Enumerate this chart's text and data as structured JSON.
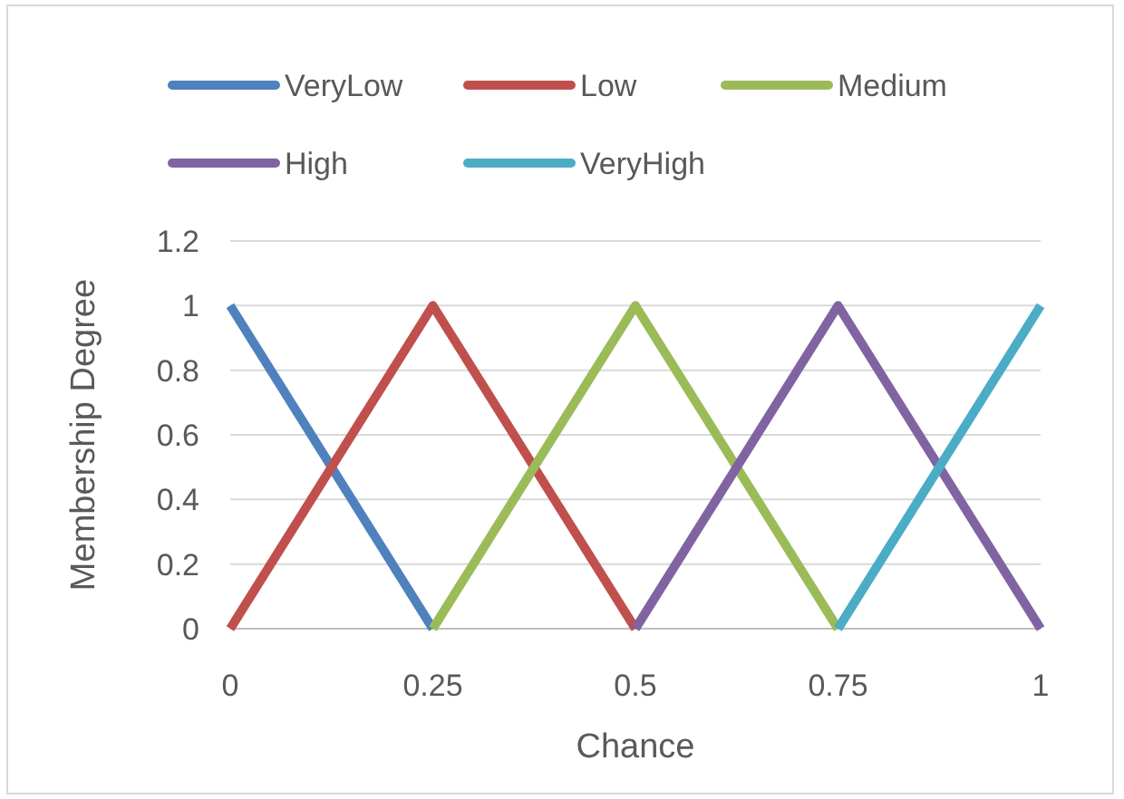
{
  "chart_data": {
    "type": "line",
    "xlabel": "Chance",
    "ylabel": "Membership Degree",
    "xlim": [
      0,
      1
    ],
    "xticks": [
      0,
      0.25,
      0.5,
      0.75,
      1
    ],
    "ylim": [
      0,
      1.2
    ],
    "yticks": [
      0,
      0.2,
      0.4,
      0.6,
      0.8,
      1,
      1.2
    ],
    "grid": "y",
    "legend": "top",
    "marker": "none",
    "line_style": "solid",
    "series": [
      {
        "name": "VeryLow",
        "color": "#4f81bd",
        "x": [
          0,
          0.25
        ],
        "values": [
          1,
          0
        ]
      },
      {
        "name": "Low",
        "color": "#c0504d",
        "x": [
          0,
          0.25,
          0.5
        ],
        "values": [
          0,
          1,
          0
        ]
      },
      {
        "name": "Medium",
        "color": "#9bbb59",
        "x": [
          0.25,
          0.5,
          0.75
        ],
        "values": [
          0,
          1,
          0
        ]
      },
      {
        "name": "High",
        "color": "#8064a2",
        "x": [
          0.5,
          0.75,
          1
        ],
        "values": [
          0,
          1,
          0
        ]
      },
      {
        "name": "VeryHigh",
        "color": "#4bacc6",
        "x": [
          0.75,
          1
        ],
        "values": [
          0,
          1
        ]
      }
    ]
  }
}
